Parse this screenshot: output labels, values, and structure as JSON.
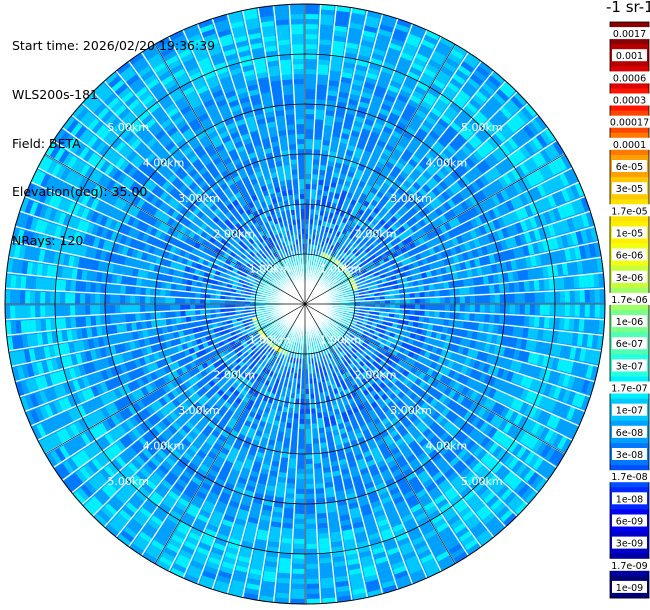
{
  "info": {
    "start_time": "Start time: 2026/02/20 19:36:39",
    "instrument": "WLS200s-181",
    "field": "Field: BETA",
    "elevation": "Elevation(deg): 35.00",
    "nrays": "NRays: 120"
  },
  "colorbar": {
    "title": "-1 sr-1",
    "ticks": [
      "0.0017",
      "0.001",
      "0.0006",
      "0.0003",
      "0.00017",
      "0.0001",
      "6e-05",
      "3e-05",
      "1.7e-05",
      "1e-05",
      "6e-06",
      "3e-06",
      "1.7e-06",
      "1e-06",
      "6e-07",
      "3e-07",
      "1.7e-07",
      "1e-07",
      "6e-08",
      "3e-08",
      "1.7e-08",
      "1e-08",
      "6e-09",
      "3e-09",
      "1.7e-09",
      "1e-09"
    ],
    "colors": [
      "#8b0000",
      "#b40000",
      "#dc0000",
      "#ff1400",
      "#ff4600",
      "#ff7800",
      "#ffa000",
      "#ffc800",
      "#ffe100",
      "#fff000",
      "#f0ff14",
      "#c8ff3c",
      "#a0ff64",
      "#78ff8c",
      "#50ffb4",
      "#28ffdc",
      "#00f0ff",
      "#00c8ff",
      "#00a0ff",
      "#0078ff",
      "#0050ff",
      "#0028ff",
      "#0000f0",
      "#0000c8",
      "#0000a0",
      "#000078"
    ]
  },
  "chart_data": {
    "type": "heatmap",
    "subtype": "polar-ppi",
    "range_unit": "km",
    "range_rings": [
      "1.00km",
      "2.00km",
      "3.00km",
      "4.00km",
      "5.00km"
    ],
    "max_range_km": 6,
    "nrays": 120,
    "scale": "log",
    "value_range": [
      1e-09,
      0.0017
    ],
    "typical_background": "3e-08 to 1.7e-07",
    "features": [
      {
        "desc": "near-range enhancement ring",
        "range_km": 1.0,
        "approx_value": "1.7e-05"
      },
      {
        "desc": "outer band",
        "range_km": 5.2,
        "approx_value": "1.7e-07"
      }
    ]
  }
}
